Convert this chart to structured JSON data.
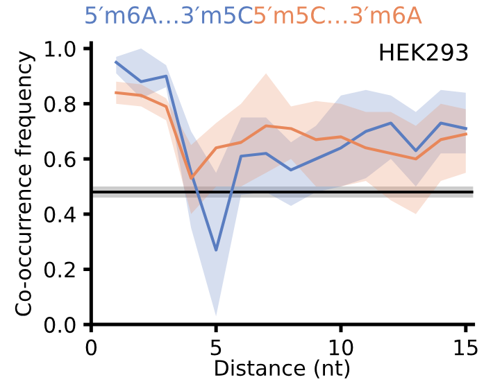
{
  "chart_data": {
    "type": "line",
    "xlabel": "Distance (nt)",
    "ylabel": "Co-occurrence frequency",
    "annotations": [
      "HEK293"
    ],
    "x": [
      1,
      2,
      3,
      4,
      5,
      6,
      7,
      8,
      9,
      10,
      11,
      12,
      13,
      14,
      15
    ],
    "series": [
      {
        "name": "5′m6A…3′m5C",
        "color": "#5a7dc0",
        "values": [
          0.95,
          0.88,
          0.9,
          0.55,
          0.27,
          0.61,
          0.62,
          0.56,
          0.6,
          0.64,
          0.7,
          0.73,
          0.63,
          0.73,
          0.71
        ],
        "lower": [
          0.91,
          0.82,
          0.86,
          0.35,
          0.03,
          0.47,
          0.48,
          0.43,
          0.48,
          0.5,
          0.53,
          0.6,
          0.5,
          0.62,
          0.62
        ],
        "upper": [
          0.97,
          1.0,
          0.94,
          0.7,
          0.55,
          0.75,
          0.75,
          0.66,
          0.72,
          0.83,
          0.85,
          0.83,
          0.77,
          0.85,
          0.84
        ]
      },
      {
        "name": "5′m5C…3′m6A",
        "color": "#e8875a",
        "values": [
          0.84,
          0.83,
          0.79,
          0.53,
          0.64,
          0.66,
          0.72,
          0.71,
          0.67,
          0.68,
          0.64,
          0.62,
          0.6,
          0.67,
          0.69
        ],
        "lower": [
          0.8,
          0.79,
          0.74,
          0.4,
          0.5,
          0.5,
          0.55,
          0.6,
          0.5,
          0.5,
          0.52,
          0.45,
          0.4,
          0.52,
          0.55
        ],
        "upper": [
          0.88,
          0.87,
          0.82,
          0.65,
          0.73,
          0.8,
          0.91,
          0.79,
          0.81,
          0.8,
          0.77,
          0.77,
          0.72,
          0.8,
          0.78
        ]
      }
    ],
    "ref_lines": [
      {
        "axis": "y",
        "value": 0.48,
        "color": "#000000"
      }
    ],
    "bands": [
      {
        "axis": "y",
        "from": 0.46,
        "to": 0.5,
        "color": "#999999"
      }
    ],
    "xlim": [
      0,
      15.3
    ],
    "xticks": [
      0,
      5,
      10,
      15
    ],
    "ylim": [
      0,
      1.02
    ],
    "yticks": [
      {
        "value": 0,
        "label": "0.0"
      },
      {
        "value": 0.2,
        "label": "0.2"
      },
      {
        "value": 0.4,
        "label": "0.4"
      },
      {
        "value": 0.6,
        "label": "0.6"
      },
      {
        "value": 0.8,
        "label": "0.8"
      },
      {
        "value": 1,
        "label": "1.0"
      }
    ],
    "grid": false,
    "legend": false,
    "marker": "none",
    "line_style": "solid"
  }
}
